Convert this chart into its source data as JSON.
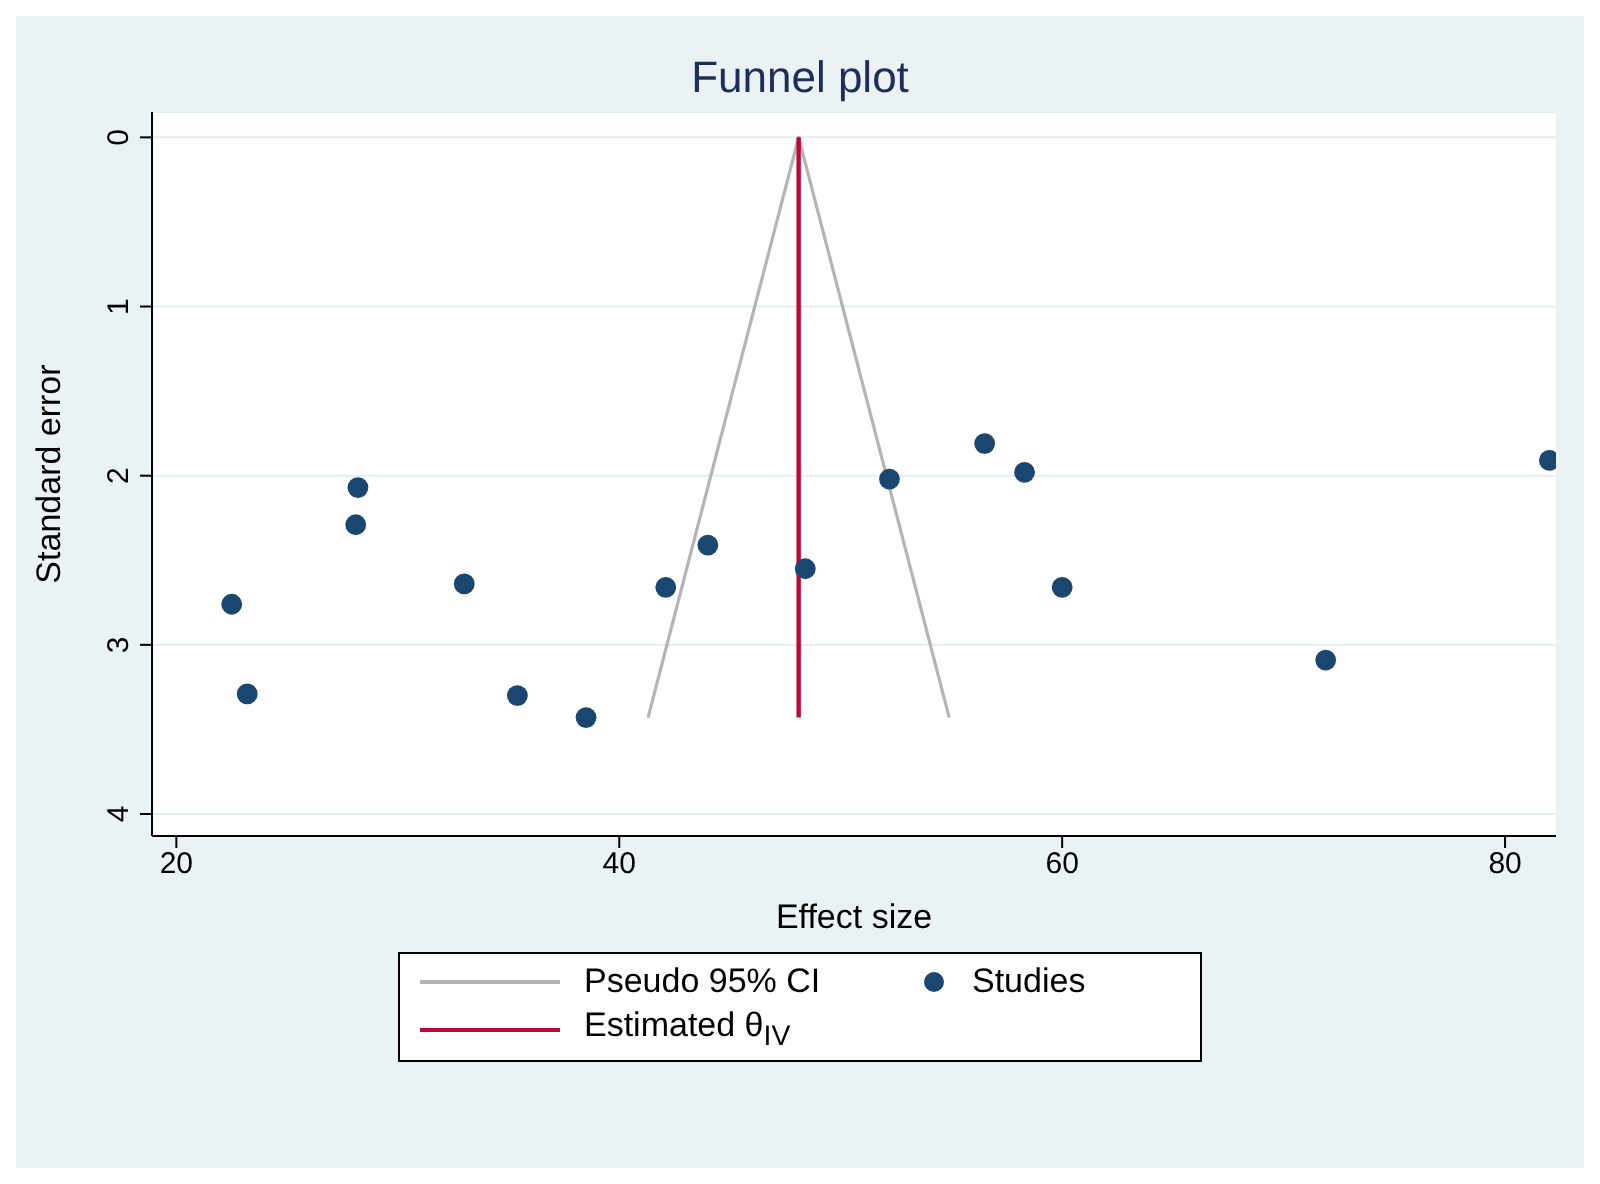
{
  "chart_data": {
    "type": "scatter",
    "title": "Funnel plot",
    "xlabel": "Effect size",
    "ylabel": "Standard error",
    "xlim": [
      18.9,
      82.3
    ],
    "xticks": [
      20,
      40,
      60,
      80
    ],
    "ylim": [
      4.13,
      -0.15
    ],
    "yticks": [
      0,
      1,
      2,
      3,
      4
    ],
    "grid": "y",
    "legend": "bottom",
    "series": [
      {
        "name": "Pseudo 95% CI",
        "type": "line",
        "marker": "none",
        "color": "#b4b4b4",
        "x": [
          41.3,
          48.1,
          54.9
        ],
        "values": [
          3.43,
          0,
          3.43
        ]
      },
      {
        "name": "Estimated θ$_{IV}$",
        "type": "line",
        "marker": "none",
        "color": "#c10534",
        "x": [
          48.1,
          48.1
        ],
        "values": [
          0,
          3.43
        ]
      },
      {
        "name": "Studies",
        "marker": "circle",
        "color": "#1a476f",
        "x": [
          22.5,
          23.2,
          28.2,
          28.1,
          33.0,
          35.4,
          38.5,
          42.1,
          44.0,
          48.4,
          52.2,
          56.5,
          58.3,
          60.0,
          71.9,
          82.0
        ],
        "values": [
          2.76,
          3.29,
          2.07,
          2.29,
          2.64,
          3.3,
          3.43,
          2.66,
          2.41,
          2.55,
          2.02,
          1.81,
          1.98,
          2.66,
          3.09,
          1.91
        ]
      }
    ]
  }
}
